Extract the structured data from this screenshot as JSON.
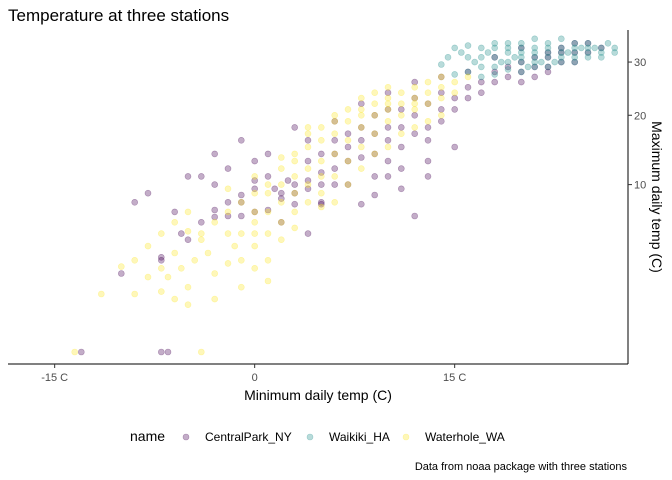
{
  "chart_data": {
    "type": "scatter",
    "title": "Temperature at three stations",
    "xlabel": "Minimum daily temp (C)",
    "ylabel": "Maximum daily temp (C)",
    "caption": "Data from noaa package with three stations",
    "x_ticks": [
      {
        "value": -15,
        "label": "-15 C"
      },
      {
        "value": 0,
        "label": "0"
      },
      {
        "value": 15,
        "label": "15 C"
      }
    ],
    "y_ticks": [
      {
        "value": 10,
        "label": "10"
      },
      {
        "value": 20,
        "label": "20"
      },
      {
        "value": 30,
        "label": "30"
      }
    ],
    "y_scale": "sqrt",
    "y_axis_position": "right",
    "xlim": [
      -18.5,
      28
    ],
    "ylim": [
      0,
      37
    ],
    "grid": false,
    "legend": {
      "position": "bottom",
      "title": "name"
    },
    "series": [
      {
        "name": "CentralPark_NY",
        "color": "#440154",
        "points": [
          [
            -13,
            0
          ],
          [
            -7,
            0
          ],
          [
            -6.5,
            0
          ],
          [
            -10,
            2.2
          ],
          [
            -7,
            3
          ],
          [
            -7,
            3.2
          ],
          [
            -5,
            4.5
          ],
          [
            -5.5,
            5
          ],
          [
            -4,
            6
          ],
          [
            -3,
            6.5
          ],
          [
            -2,
            6.6
          ],
          [
            -1,
            8
          ],
          [
            -1,
            8.8
          ],
          [
            0,
            9.5
          ],
          [
            0,
            10.5
          ],
          [
            1,
            11
          ],
          [
            1.5,
            9.5
          ],
          [
            2,
            9
          ],
          [
            2,
            8.4
          ],
          [
            2.5,
            10.5
          ],
          [
            3,
            10
          ],
          [
            3,
            9
          ],
          [
            4,
            10.5
          ],
          [
            4,
            9.5
          ],
          [
            4,
            13
          ],
          [
            5,
            11.5
          ],
          [
            5,
            14
          ],
          [
            5,
            10
          ],
          [
            6,
            12
          ],
          [
            6,
            14
          ],
          [
            6,
            16
          ],
          [
            7,
            13
          ],
          [
            7,
            15
          ],
          [
            7,
            17
          ],
          [
            8,
            13.5
          ],
          [
            8,
            16
          ],
          [
            8,
            18
          ],
          [
            9,
            14
          ],
          [
            9,
            17
          ],
          [
            9,
            20
          ],
          [
            10,
            13
          ],
          [
            10,
            16
          ],
          [
            10,
            18
          ],
          [
            10,
            21
          ],
          [
            11,
            15
          ],
          [
            11,
            18
          ],
          [
            11,
            21
          ],
          [
            12,
            17
          ],
          [
            12,
            20
          ],
          [
            12,
            23
          ],
          [
            13,
            16
          ],
          [
            13,
            18
          ],
          [
            13,
            22
          ],
          [
            14,
            19
          ],
          [
            14,
            21
          ],
          [
            14,
            24
          ],
          [
            15,
            21
          ],
          [
            15,
            23
          ],
          [
            16,
            23
          ],
          [
            16,
            25
          ],
          [
            17,
            24
          ],
          [
            17,
            26
          ],
          [
            18,
            26
          ],
          [
            18,
            28
          ],
          [
            19,
            27
          ],
          [
            19,
            29
          ],
          [
            20,
            28
          ],
          [
            20,
            30
          ],
          [
            20,
            26
          ],
          [
            21,
            29
          ],
          [
            21,
            31
          ],
          [
            21,
            27
          ],
          [
            22,
            29
          ],
          [
            22,
            31
          ],
          [
            22,
            32
          ],
          [
            22,
            28
          ],
          [
            23,
            30
          ],
          [
            23,
            32
          ],
          [
            23,
            33
          ],
          [
            24,
            30
          ],
          [
            24,
            32
          ],
          [
            24,
            34
          ],
          [
            25,
            32
          ],
          [
            25,
            34
          ],
          [
            26,
            33
          ],
          [
            3,
            18
          ],
          [
            1,
            14
          ],
          [
            -1,
            16
          ],
          [
            -3,
            10
          ],
          [
            -4,
            11
          ],
          [
            5,
            7.8
          ],
          [
            8,
            7.8
          ],
          [
            12,
            6.6
          ],
          [
            4,
            5
          ],
          [
            2,
            6
          ],
          [
            0,
            7
          ],
          [
            -2,
            8
          ],
          [
            13,
            13
          ],
          [
            15,
            15
          ],
          [
            11,
            12
          ],
          [
            -9,
            8
          ],
          [
            -8,
            9
          ],
          [
            -6,
            7
          ],
          [
            -5,
            11
          ],
          [
            -3,
            14
          ],
          [
            -2,
            12
          ],
          [
            0,
            13
          ],
          [
            4,
            16
          ],
          [
            6,
            19
          ],
          [
            8,
            22
          ],
          [
            10,
            24
          ],
          [
            12,
            26
          ],
          [
            14,
            27
          ],
          [
            16,
            28
          ],
          [
            18,
            31
          ],
          [
            20,
            33
          ],
          [
            6,
            10
          ],
          [
            7,
            10
          ],
          [
            9,
            11
          ],
          [
            10,
            11
          ],
          [
            5,
            8
          ],
          [
            3,
            7.8
          ],
          [
            1,
            7.2
          ],
          [
            -1,
            6.6
          ],
          [
            -3,
            7.2
          ],
          [
            9,
            8.8
          ],
          [
            11,
            9.5
          ],
          [
            13,
            11
          ]
        ]
      },
      {
        "name": "Waikiki_HA",
        "color": "#21908c",
        "points": [
          [
            14,
            29.5
          ],
          [
            14.5,
            31
          ],
          [
            15,
            33
          ],
          [
            15.5,
            32
          ],
          [
            16,
            33.5
          ],
          [
            16.5,
            30
          ],
          [
            17,
            31
          ],
          [
            17,
            33
          ],
          [
            17.5,
            32
          ],
          [
            18,
            31
          ],
          [
            18,
            33
          ],
          [
            18,
            34
          ],
          [
            18.5,
            30
          ],
          [
            19,
            32
          ],
          [
            19,
            33
          ],
          [
            19,
            34
          ],
          [
            19.5,
            31
          ],
          [
            20,
            30
          ],
          [
            20,
            32
          ],
          [
            20,
            33
          ],
          [
            20,
            34
          ],
          [
            20.5,
            29
          ],
          [
            21,
            31
          ],
          [
            21,
            32
          ],
          [
            21,
            33
          ],
          [
            21,
            35
          ],
          [
            21.5,
            30
          ],
          [
            22,
            31
          ],
          [
            22,
            32
          ],
          [
            22,
            33
          ],
          [
            22,
            34
          ],
          [
            22.5,
            30
          ],
          [
            23,
            31
          ],
          [
            23,
            32
          ],
          [
            23,
            33
          ],
          [
            23,
            35
          ],
          [
            23.5,
            32
          ],
          [
            24,
            31
          ],
          [
            24,
            32
          ],
          [
            24,
            33
          ],
          [
            24,
            34
          ],
          [
            24.5,
            33
          ],
          [
            25,
            32
          ],
          [
            25,
            33
          ],
          [
            25,
            34
          ],
          [
            25.5,
            33
          ],
          [
            26,
            32
          ],
          [
            26,
            33
          ],
          [
            26.5,
            34
          ],
          [
            27,
            33
          ],
          [
            27,
            32
          ],
          [
            17,
            27
          ],
          [
            18,
            27.5
          ],
          [
            19,
            28.5
          ],
          [
            20,
            28
          ],
          [
            21,
            29
          ],
          [
            16,
            28
          ],
          [
            15,
            27.5
          ],
          [
            16,
            31
          ],
          [
            17,
            29
          ],
          [
            18,
            29
          ],
          [
            19,
            30
          ],
          [
            20,
            31
          ],
          [
            21,
            30
          ],
          [
            22,
            29
          ],
          [
            23,
            30
          ],
          [
            24,
            30
          ],
          [
            25,
            31
          ],
          [
            26,
            31
          ]
        ]
      },
      {
        "name": "Waterhole_WA",
        "color": "#fde725",
        "points": [
          [
            -13.5,
            0
          ],
          [
            -11.5,
            1.2
          ],
          [
            -9,
            1.2
          ],
          [
            -7,
            1.3
          ],
          [
            -6,
            1
          ],
          [
            -5,
            0.8
          ],
          [
            -4,
            0
          ],
          [
            -6.5,
            2
          ],
          [
            -5.5,
            2.5
          ],
          [
            -4.5,
            3
          ],
          [
            -3.5,
            3.5
          ],
          [
            -3,
            2.2
          ],
          [
            -2,
            2.8
          ],
          [
            -1.5,
            4
          ],
          [
            -1,
            3
          ],
          [
            -1,
            5
          ],
          [
            0,
            4
          ],
          [
            0,
            6
          ],
          [
            0,
            7
          ],
          [
            1,
            5
          ],
          [
            1,
            7
          ],
          [
            1,
            9
          ],
          [
            2,
            6
          ],
          [
            2,
            8
          ],
          [
            2,
            10
          ],
          [
            3,
            7
          ],
          [
            3,
            9
          ],
          [
            3,
            11
          ],
          [
            3,
            13
          ],
          [
            4,
            8
          ],
          [
            4,
            10
          ],
          [
            4,
            12
          ],
          [
            4,
            15
          ],
          [
            5,
            9
          ],
          [
            5,
            11
          ],
          [
            5,
            13
          ],
          [
            5,
            16
          ],
          [
            6,
            11
          ],
          [
            6,
            14
          ],
          [
            6,
            17
          ],
          [
            7,
            13
          ],
          [
            7,
            16
          ],
          [
            7,
            19
          ],
          [
            8,
            15
          ],
          [
            8,
            18
          ],
          [
            8,
            21
          ],
          [
            9,
            17
          ],
          [
            9,
            20
          ],
          [
            9,
            22
          ],
          [
            10,
            19
          ],
          [
            10,
            21
          ],
          [
            10,
            23
          ],
          [
            11,
            20
          ],
          [
            11,
            22
          ],
          [
            11,
            24
          ],
          [
            12,
            21
          ],
          [
            12,
            23
          ],
          [
            12,
            25
          ],
          [
            13,
            22
          ],
          [
            13,
            24
          ],
          [
            13,
            26
          ],
          [
            14,
            23
          ],
          [
            14,
            25
          ],
          [
            14,
            27
          ],
          [
            15,
            24
          ],
          [
            15,
            26
          ],
          [
            16,
            27
          ],
          [
            -8,
            4
          ],
          [
            -7,
            5
          ],
          [
            -6,
            6
          ],
          [
            -5,
            7
          ],
          [
            -4,
            5
          ],
          [
            -3,
            6
          ],
          [
            -2,
            7
          ],
          [
            -1,
            8
          ],
          [
            0,
            9
          ],
          [
            1,
            10
          ],
          [
            2,
            12
          ],
          [
            3,
            14
          ],
          [
            4,
            17
          ],
          [
            5,
            18
          ],
          [
            6,
            19
          ],
          [
            7,
            21
          ],
          [
            8,
            23
          ],
          [
            9,
            24
          ],
          [
            10,
            25
          ],
          [
            -7,
            2.5
          ],
          [
            -6,
            3.5
          ],
          [
            -4,
            4.5
          ],
          [
            -2,
            5
          ],
          [
            0,
            5
          ],
          [
            2,
            4.5
          ],
          [
            1,
            3
          ],
          [
            -3,
            1
          ],
          [
            -5,
            1.5
          ],
          [
            3,
            5.5
          ],
          [
            5,
            7.5
          ],
          [
            6,
            8
          ],
          [
            7,
            10
          ],
          [
            8,
            12
          ],
          [
            9,
            14
          ],
          [
            10,
            15
          ],
          [
            11,
            17
          ],
          [
            12,
            18
          ],
          [
            13,
            19
          ],
          [
            14,
            20
          ],
          [
            -9,
            3
          ],
          [
            -8,
            2
          ],
          [
            -10,
            2.6
          ],
          [
            -5,
            5.2
          ],
          [
            -2,
            9.5
          ],
          [
            0,
            11
          ],
          [
            2,
            13.5
          ],
          [
            4,
            18
          ],
          [
            6,
            20
          ],
          [
            8,
            20
          ],
          [
            10,
            22
          ],
          [
            12,
            22
          ],
          [
            -1,
            1.5
          ],
          [
            0,
            2.5
          ],
          [
            1,
            1.8
          ]
        ]
      }
    ]
  }
}
